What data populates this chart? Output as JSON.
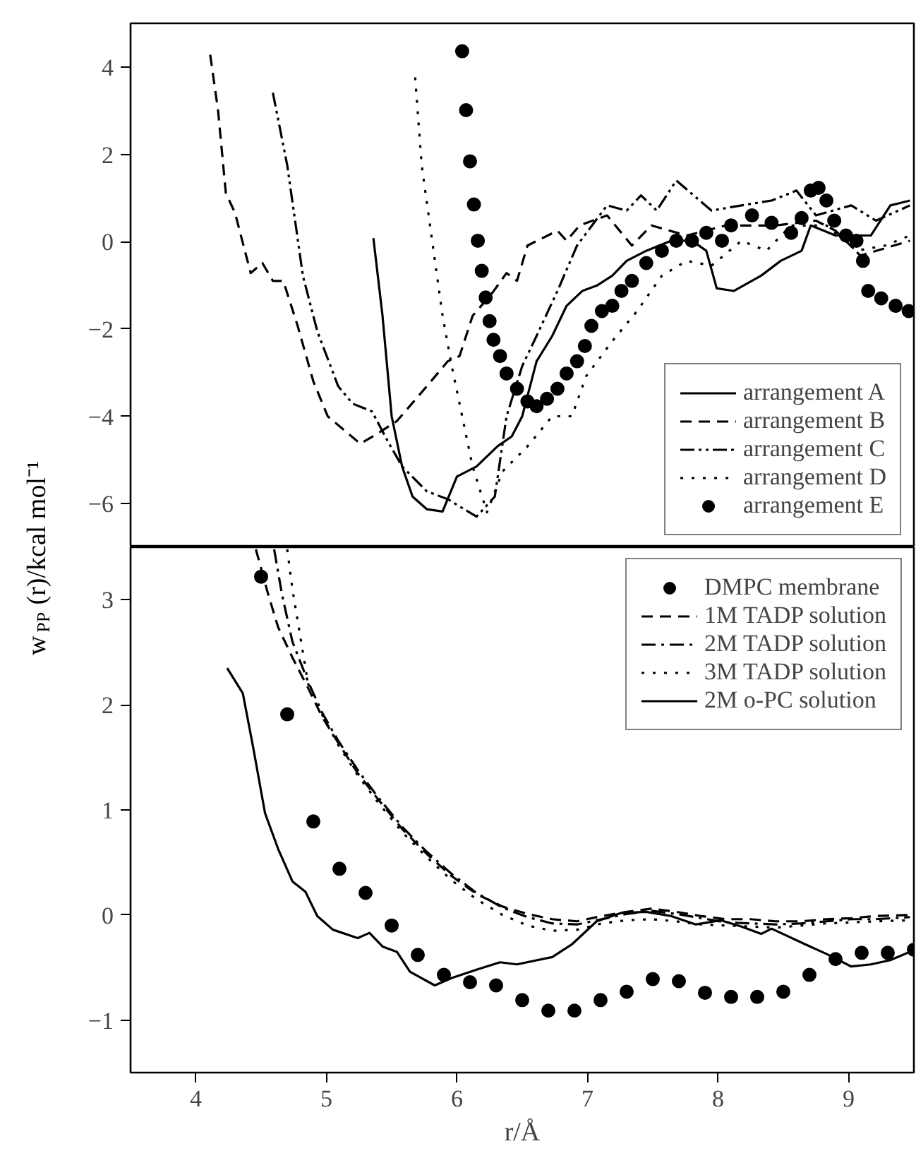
{
  "chart_data": [
    {
      "type": "line",
      "ylabel": "w$_{PP}$(r)/kcal mol⁻¹",
      "xlim": [
        3.5,
        9.5
      ],
      "xticks": [
        4,
        5,
        6,
        7,
        8,
        9
      ],
      "ylim": [
        -7,
        5
      ],
      "yticks": [
        -6,
        -4,
        -2,
        0,
        2,
        4
      ],
      "tick_labels": "y",
      "legend": "bottom right",
      "grid": false,
      "series": [
        {
          "name": "arrangement A",
          "color": "#000000",
          "line_style": "solid",
          "x": [
            5.36,
            5.43,
            5.5,
            5.58,
            5.66,
            5.77,
            5.89,
            6.0,
            6.15,
            6.31,
            6.42,
            6.5,
            6.61,
            6.73,
            6.84,
            6.96,
            7.07,
            7.19,
            7.3,
            7.45,
            7.64,
            7.8,
            7.91,
            7.99,
            8.12,
            8.33,
            8.48,
            8.64,
            8.71,
            8.9,
            9.17,
            9.32,
            9.47
          ],
          "values": [
            0.08,
            -1.7,
            -4.0,
            -5.15,
            -5.84,
            -6.13,
            -6.18,
            -5.38,
            -5.15,
            -4.69,
            -4.46,
            -4.0,
            -2.74,
            -2.16,
            -1.47,
            -1.13,
            -1.01,
            -0.78,
            -0.44,
            -0.21,
            0.02,
            0.02,
            -0.21,
            -1.07,
            -1.13,
            -0.78,
            -0.44,
            -0.21,
            0.37,
            0.14,
            0.14,
            0.83,
            0.94
          ]
        },
        {
          "name": "arrangement B",
          "color": "#000000",
          "line_style": "dashed",
          "x": [
            4.11,
            4.17,
            4.23,
            4.3,
            4.42,
            4.51,
            4.59,
            4.67,
            4.78,
            4.9,
            5.01,
            5.26,
            5.39,
            5.54,
            5.77,
            5.93,
            6.02,
            6.12,
            6.27,
            6.38,
            6.46,
            6.54,
            6.77,
            6.84,
            6.94,
            7.15,
            7.34,
            7.49,
            7.76,
            8.06,
            8.44,
            8.75,
            8.9,
            9.09,
            9.47
          ],
          "values": [
            4.28,
            3.01,
            1.11,
            0.66,
            -0.72,
            -0.49,
            -0.9,
            -0.9,
            -1.93,
            -3.2,
            -4.0,
            -4.63,
            -4.4,
            -4.11,
            -3.31,
            -2.74,
            -2.62,
            -1.7,
            -1.18,
            -0.72,
            -0.9,
            -0.09,
            0.25,
            0.02,
            0.37,
            0.6,
            -0.09,
            0.37,
            0.14,
            0.37,
            0.37,
            0.48,
            0.25,
            -0.32,
            0.02
          ]
        },
        {
          "name": "arrangement C",
          "color": "#000000",
          "line_style": "dashdotdot",
          "x": [
            4.59,
            4.7,
            4.82,
            4.93,
            5.09,
            5.2,
            5.35,
            5.47,
            5.58,
            5.77,
            5.93,
            6.15,
            6.29,
            6.38,
            6.5,
            6.61,
            6.77,
            6.92,
            7.15,
            7.3,
            7.41,
            7.53,
            7.68,
            7.95,
            8.18,
            8.41,
            8.6,
            8.75,
            9.02,
            9.21,
            9.47
          ],
          "values": [
            3.41,
            1.75,
            -0.78,
            -2.05,
            -3.31,
            -3.71,
            -3.89,
            -4.57,
            -5.15,
            -5.72,
            -5.9,
            -6.3,
            -5.84,
            -4.0,
            -2.85,
            -2.16,
            -1.13,
            -0.09,
            0.83,
            0.71,
            1.06,
            0.71,
            1.4,
            0.71,
            0.83,
            0.94,
            1.17,
            0.6,
            0.83,
            0.48,
            0.83
          ]
        },
        {
          "name": "arrangement D",
          "color": "#000000",
          "line_style": "dotted",
          "x": [
            5.68,
            5.73,
            5.81,
            5.89,
            5.96,
            6.04,
            6.12,
            6.23,
            6.35,
            6.54,
            6.73,
            6.88,
            6.99,
            7.19,
            7.38,
            7.57,
            7.76,
            7.95,
            8.18,
            8.37,
            8.56,
            8.83,
            9.06,
            9.28,
            9.47
          ],
          "values": [
            3.76,
            1.75,
            0.02,
            -1.7,
            -2.85,
            -4.0,
            -5.15,
            -6.2,
            -5.26,
            -4.69,
            -4.0,
            -4.0,
            -3.08,
            -2.28,
            -1.59,
            -0.78,
            -0.44,
            -0.55,
            0.02,
            -0.21,
            0.37,
            0.37,
            -0.21,
            -0.09,
            0.14
          ]
        },
        {
          "name": "arrangement E",
          "color": "#000000",
          "type": "scatter",
          "marker": "circle",
          "x": [
            6.04,
            6.07,
            6.1,
            6.13,
            6.16,
            6.19,
            6.22,
            6.25,
            6.28,
            6.33,
            6.38,
            6.46,
            6.54,
            6.61,
            6.69,
            6.77,
            6.84,
            6.92,
            6.98,
            7.03,
            7.11,
            7.19,
            7.26,
            7.34,
            7.45,
            7.57,
            7.68,
            7.8,
            7.91,
            8.03,
            8.1,
            8.26,
            8.41,
            8.56,
            8.64,
            8.71,
            8.77,
            8.83,
            8.89,
            8.98,
            9.06,
            9.11,
            9.15,
            9.25,
            9.36,
            9.46
          ],
          "values": [
            4.36,
            3.01,
            1.84,
            0.85,
            0.02,
            -0.67,
            -1.28,
            -1.82,
            -2.25,
            -2.62,
            -3.02,
            -3.37,
            -3.66,
            -3.77,
            -3.6,
            -3.37,
            -3.02,
            -2.74,
            -2.39,
            -1.93,
            -1.59,
            -1.47,
            -1.13,
            -0.9,
            -0.49,
            -0.21,
            0.02,
            0.02,
            0.2,
            0.02,
            0.37,
            0.6,
            0.43,
            0.2,
            0.54,
            1.17,
            1.23,
            0.94,
            0.48,
            0.14,
            0.02,
            -0.44,
            -1.13,
            -1.3,
            -1.47,
            -1.59
          ]
        }
      ]
    },
    {
      "type": "line",
      "xlabel": "r/Å",
      "xlim": [
        3.5,
        9.5
      ],
      "xticks": [
        4,
        5,
        6,
        7,
        8,
        9
      ],
      "ylim": [
        -1.5,
        3.5
      ],
      "yticks": [
        -1,
        0,
        1,
        2,
        3
      ],
      "legend": "top right",
      "grid": false,
      "series": [
        {
          "name": "DMPC membrane",
          "color": "#000000",
          "type": "scatter",
          "marker": "circle",
          "x": [
            4.5,
            4.7,
            4.9,
            5.1,
            5.3,
            5.5,
            5.7,
            5.9,
            6.1,
            6.3,
            6.5,
            6.7,
            6.9,
            7.1,
            7.3,
            7.5,
            7.7,
            7.9,
            8.1,
            8.3,
            8.5,
            8.7,
            8.9,
            9.1,
            9.3,
            9.5
          ],
          "values": [
            3.22,
            1.91,
            0.89,
            0.44,
            0.21,
            -0.1,
            -0.38,
            -0.57,
            -0.64,
            -0.67,
            -0.81,
            -0.91,
            -0.91,
            -0.81,
            -0.73,
            -0.61,
            -0.63,
            -0.74,
            -0.78,
            -0.78,
            -0.73,
            -0.57,
            -0.42,
            -0.36,
            -0.36,
            -0.33
          ]
        },
        {
          "name": "1M TADP solution",
          "color": "#000000",
          "line_style": "dashed",
          "x": [
            4.46,
            4.55,
            4.63,
            4.74,
            4.86,
            4.97,
            5.09,
            5.24,
            5.39,
            5.58,
            5.77,
            5.96,
            6.15,
            6.35,
            6.54,
            6.73,
            6.92,
            7.11,
            7.3,
            7.49,
            7.68,
            7.87,
            8.06,
            8.25,
            8.44,
            8.64,
            8.83,
            9.02,
            9.21,
            9.47
          ],
          "values": [
            3.48,
            3.07,
            2.74,
            2.45,
            2.16,
            1.88,
            1.64,
            1.35,
            1.11,
            0.82,
            0.58,
            0.37,
            0.2,
            0.08,
            0.01,
            -0.04,
            -0.06,
            -0.01,
            0.03,
            0.06,
            0.03,
            -0.01,
            -0.04,
            -0.04,
            -0.06,
            -0.06,
            -0.04,
            -0.03,
            -0.01,
            0.0
          ]
        },
        {
          "name": "2M TADP solution",
          "color": "#000000",
          "line_style": "dashdot",
          "x": [
            4.6,
            4.66,
            4.74,
            4.86,
            4.97,
            5.09,
            5.24,
            5.39,
            5.58,
            5.77,
            5.96,
            6.15,
            6.35,
            6.54,
            6.73,
            6.92,
            7.11,
            7.3,
            7.49,
            7.68,
            7.87,
            8.06,
            8.25,
            8.44,
            8.64,
            8.83,
            9.02,
            9.21,
            9.47
          ],
          "values": [
            3.48,
            3.05,
            2.6,
            2.22,
            1.92,
            1.66,
            1.38,
            1.13,
            0.84,
            0.6,
            0.39,
            0.21,
            0.07,
            -0.02,
            -0.08,
            -0.09,
            -0.04,
            0.01,
            0.04,
            0.01,
            -0.03,
            -0.07,
            -0.08,
            -0.09,
            -0.08,
            -0.06,
            -0.04,
            -0.04,
            -0.02
          ]
        },
        {
          "name": "3M TADP solution",
          "color": "#000000",
          "line_style": "dotted",
          "x": [
            4.7,
            4.74,
            4.86,
            4.97,
            5.09,
            5.24,
            5.39,
            5.58,
            5.77,
            5.96,
            6.15,
            6.35,
            6.54,
            6.73,
            6.92,
            7.11,
            7.3,
            7.49,
            7.68,
            7.87,
            8.06,
            8.25,
            8.44,
            8.64,
            8.83,
            9.02,
            9.21,
            9.47
          ],
          "values": [
            3.48,
            3.1,
            2.2,
            1.9,
            1.62,
            1.33,
            1.08,
            0.79,
            0.55,
            0.33,
            0.15,
            0.0,
            -0.1,
            -0.15,
            -0.14,
            -0.08,
            -0.05,
            -0.04,
            -0.06,
            -0.09,
            -0.1,
            -0.11,
            -0.12,
            -0.1,
            -0.08,
            -0.07,
            -0.06,
            -0.05
          ]
        },
        {
          "name": "2M o-PC solution",
          "color": "#000000",
          "line_style": "solid",
          "x": [
            4.24,
            4.36,
            4.44,
            4.53,
            4.63,
            4.74,
            4.84,
            4.93,
            5.05,
            5.24,
            5.33,
            5.43,
            5.54,
            5.64,
            5.83,
            5.96,
            6.15,
            6.33,
            6.46,
            6.73,
            6.88,
            7.07,
            7.26,
            7.45,
            7.64,
            7.83,
            8.02,
            8.18,
            8.33,
            8.41,
            8.67,
            8.83,
            9.02,
            9.17,
            9.32,
            9.47
          ],
          "values": [
            2.35,
            2.11,
            1.59,
            0.97,
            0.63,
            0.32,
            0.22,
            -0.01,
            -0.14,
            -0.22,
            -0.17,
            -0.3,
            -0.35,
            -0.54,
            -0.67,
            -0.6,
            -0.52,
            -0.45,
            -0.47,
            -0.4,
            -0.28,
            -0.06,
            0.02,
            0.03,
            -0.01,
            -0.09,
            -0.05,
            -0.11,
            -0.18,
            -0.13,
            -0.28,
            -0.37,
            -0.49,
            -0.47,
            -0.43,
            -0.35
          ]
        }
      ]
    }
  ]
}
